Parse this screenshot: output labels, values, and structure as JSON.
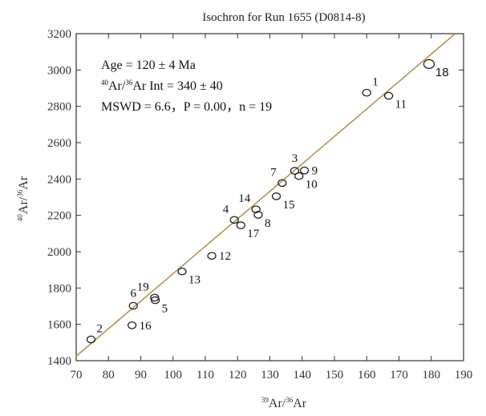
{
  "chart_data": {
    "type": "scatter",
    "title": "Isochron for Run 1655 (D0814-8)",
    "xlabel": {
      "sup": "39",
      "a": "Ar/",
      "sup2": "36",
      "b": "Ar"
    },
    "ylabel": {
      "sup": "40",
      "a": "Ar/",
      "sup2": "36",
      "b": "Ar"
    },
    "xlim": [
      70,
      190
    ],
    "ylim": [
      1400,
      3200
    ],
    "x_ticks": [
      70,
      80,
      90,
      100,
      110,
      120,
      130,
      140,
      150,
      160,
      170,
      180,
      190
    ],
    "y_ticks": [
      1400,
      1600,
      1800,
      2000,
      2200,
      2400,
      2600,
      2800,
      3000,
      3200
    ],
    "annotations": {
      "age": "Age = 120 ± 4 Ma",
      "int_sup1": "40",
      "int_a": "Ar/",
      "int_sup2": "36",
      "int_b": "Ar Int = 340 ± 40",
      "mswd": "MSWD = 6.6，P = 0.00，n = 19"
    },
    "isochron_line": {
      "x": [
        70,
        190
      ],
      "y": [
        1425,
        3239
      ],
      "color": "#b8914f"
    },
    "points": [
      {
        "label": "1",
        "x": 160.0,
        "y": 2875,
        "label_pos": "top-right"
      },
      {
        "label": "2",
        "x": 74.6,
        "y": 1517,
        "label_pos": "top-right"
      },
      {
        "label": "3",
        "x": 137.7,
        "y": 2445,
        "label_pos": "top"
      },
      {
        "label": "4",
        "x": 119.0,
        "y": 2175,
        "label_pos": "top-left"
      },
      {
        "label": "5",
        "x": 94.5,
        "y": 1733,
        "label_pos": "bottom-right"
      },
      {
        "label": "6",
        "x": 87.7,
        "y": 1702,
        "label_pos": "top"
      },
      {
        "label": "7",
        "x": 133.8,
        "y": 2378,
        "label_pos": "top-left"
      },
      {
        "label": "8",
        "x": 126.4,
        "y": 2203,
        "label_pos": "bottom-right"
      },
      {
        "label": "9",
        "x": 140.7,
        "y": 2447,
        "label_pos": "right"
      },
      {
        "label": "10",
        "x": 139.0,
        "y": 2416,
        "label_pos": "bottom-right"
      },
      {
        "label": "11",
        "x": 166.8,
        "y": 2858,
        "label_pos": "bottom-right"
      },
      {
        "label": "12",
        "x": 112.0,
        "y": 1977,
        "label_pos": "right"
      },
      {
        "label": "13",
        "x": 102.8,
        "y": 1891,
        "label_pos": "bottom-right"
      },
      {
        "label": "14",
        "x": 125.7,
        "y": 2233,
        "label_pos": "top-left"
      },
      {
        "label": "15",
        "x": 132.0,
        "y": 2305,
        "label_pos": "bottom-right"
      },
      {
        "label": "16",
        "x": 87.3,
        "y": 1595,
        "label_pos": "right"
      },
      {
        "label": "17",
        "x": 121.0,
        "y": 2145,
        "label_pos": "bottom-right"
      },
      {
        "label": "18",
        "x": 179.3,
        "y": 3033,
        "label_pos": "bottom-right"
      },
      {
        "label": "19",
        "x": 94.3,
        "y": 1747,
        "label_pos": "top-left"
      }
    ]
  }
}
